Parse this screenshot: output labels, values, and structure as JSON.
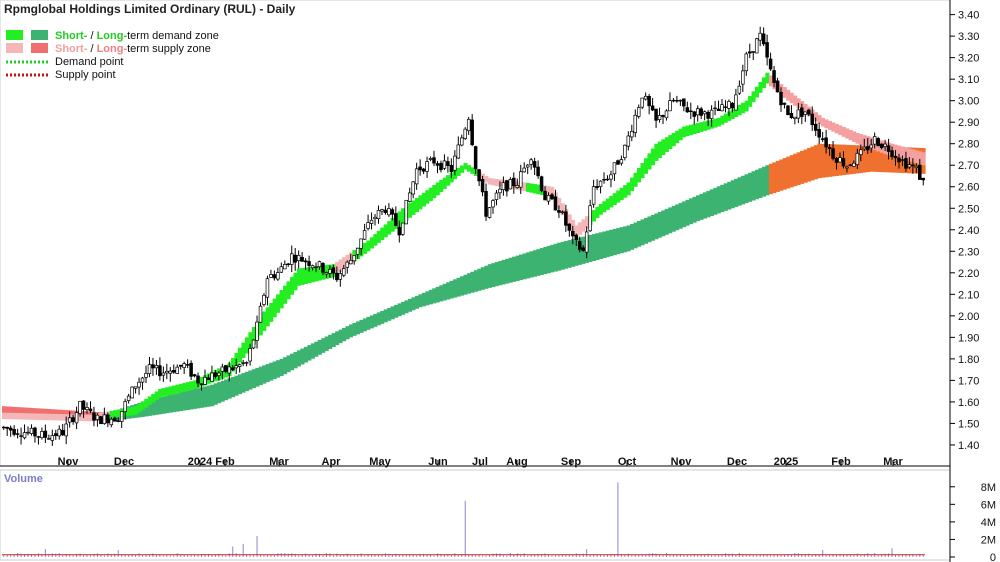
{
  "chart_data": {
    "type": "candlestick",
    "title": "Rpmglobal Holdings Limited Ordinary (RUL) - Daily",
    "legend": [
      {
        "text_a": "Short-",
        "text_b": " / ",
        "text_c": "Long-",
        "text_d": "term demand zone",
        "color_short": "#22ee22",
        "color_long": "#3cb371",
        "text_color": "#22cc22"
      },
      {
        "text_a": "Short-",
        "text_b": " / ",
        "text_c": "Long-",
        "text_d": "term supply zone",
        "color_short": "#f4b6b6",
        "color_long": "#f07070",
        "text_color": "#f0a0a0"
      },
      {
        "text": "Demand point",
        "color": "#22cc22",
        "style": "dotted"
      },
      {
        "text": "Supply point",
        "color": "#cc1111",
        "style": "dotted"
      }
    ],
    "price_axis": {
      "ylim": [
        1.33,
        3.44
      ],
      "ticks": [
        "1.40",
        "1.50",
        "1.60",
        "1.70",
        "1.80",
        "1.90",
        "2.00",
        "2.10",
        "2.20",
        "2.30",
        "2.40",
        "2.50",
        "2.60",
        "2.70",
        "2.80",
        "2.90",
        "3.00",
        "3.10",
        "3.20",
        "3.30",
        "3.40"
      ]
    },
    "months": [
      "Nov",
      "Dec",
      "2024",
      "Feb",
      "Mar",
      "Apr",
      "May",
      "Jun",
      "Jul",
      "Aug",
      "Sep",
      "Oct",
      "Nov",
      "Dec",
      "2025",
      "Feb",
      "Mar"
    ],
    "price_keypoints": [
      [
        0,
        1.48
      ],
      [
        12,
        1.44
      ],
      [
        17,
        1.46
      ],
      [
        22,
        1.58
      ],
      [
        27,
        1.52
      ],
      [
        33,
        1.53
      ],
      [
        38,
        1.68
      ],
      [
        42,
        1.75
      ],
      [
        46,
        1.74
      ],
      [
        52,
        1.77
      ],
      [
        56,
        1.7
      ],
      [
        63,
        1.74
      ],
      [
        70,
        1.78
      ],
      [
        73,
        1.95
      ],
      [
        76,
        2.18
      ],
      [
        79,
        2.2
      ],
      [
        83,
        2.28
      ],
      [
        90,
        2.24
      ],
      [
        96,
        2.18
      ],
      [
        100,
        2.26
      ],
      [
        106,
        2.45
      ],
      [
        110,
        2.5
      ],
      [
        114,
        2.4
      ],
      [
        119,
        2.68
      ],
      [
        124,
        2.72
      ],
      [
        129,
        2.68
      ],
      [
        134,
        2.93
      ],
      [
        136,
        2.7
      ],
      [
        139,
        2.48
      ],
      [
        144,
        2.6
      ],
      [
        148,
        2.62
      ],
      [
        152,
        2.75
      ],
      [
        156,
        2.55
      ],
      [
        160,
        2.5
      ],
      [
        164,
        2.35
      ],
      [
        167,
        2.3
      ],
      [
        170,
        2.6
      ],
      [
        175,
        2.66
      ],
      [
        179,
        2.78
      ],
      [
        184,
        3.03
      ],
      [
        188,
        2.9
      ],
      [
        193,
        3.0
      ],
      [
        198,
        2.95
      ],
      [
        204,
        2.94
      ],
      [
        210,
        2.98
      ],
      [
        214,
        3.2
      ],
      [
        218,
        3.3
      ],
      [
        222,
        3.08
      ],
      [
        226,
        2.93
      ],
      [
        231,
        2.95
      ],
      [
        235,
        2.85
      ],
      [
        239,
        2.75
      ],
      [
        243,
        2.7
      ],
      [
        247,
        2.75
      ],
      [
        251,
        2.82
      ],
      [
        255,
        2.78
      ],
      [
        259,
        2.72
      ],
      [
        263,
        2.68
      ],
      [
        265,
        2.62
      ]
    ],
    "long_zone_upper": [
      [
        0,
        1.58
      ],
      [
        30,
        1.55
      ],
      [
        40,
        1.6
      ],
      [
        60,
        1.68
      ],
      [
        80,
        1.8
      ],
      [
        100,
        1.96
      ],
      [
        120,
        2.1
      ],
      [
        140,
        2.24
      ],
      [
        160,
        2.34
      ],
      [
        180,
        2.42
      ],
      [
        200,
        2.56
      ],
      [
        220,
        2.7
      ],
      [
        235,
        2.8
      ],
      [
        250,
        2.79
      ],
      [
        265,
        2.78
      ]
    ],
    "long_zone_lower": [
      [
        0,
        1.53
      ],
      [
        30,
        1.51
      ],
      [
        40,
        1.53
      ],
      [
        60,
        1.58
      ],
      [
        80,
        1.72
      ],
      [
        100,
        1.9
      ],
      [
        120,
        2.04
      ],
      [
        140,
        2.13
      ],
      [
        160,
        2.21
      ],
      [
        180,
        2.3
      ],
      [
        200,
        2.44
      ],
      [
        220,
        2.56
      ],
      [
        235,
        2.64
      ],
      [
        250,
        2.67
      ],
      [
        265,
        2.66
      ]
    ],
    "short_zone_upper": [
      [
        0,
        1.55
      ],
      [
        25,
        1.54
      ],
      [
        38,
        1.58
      ],
      [
        45,
        1.66
      ],
      [
        55,
        1.7
      ],
      [
        65,
        1.78
      ],
      [
        75,
        2.02
      ],
      [
        85,
        2.22
      ],
      [
        95,
        2.24
      ],
      [
        105,
        2.35
      ],
      [
        115,
        2.5
      ],
      [
        125,
        2.62
      ],
      [
        133,
        2.71
      ],
      [
        140,
        2.64
      ],
      [
        150,
        2.62
      ],
      [
        158,
        2.6
      ],
      [
        165,
        2.42
      ],
      [
        172,
        2.52
      ],
      [
        180,
        2.62
      ],
      [
        188,
        2.8
      ],
      [
        196,
        2.88
      ],
      [
        206,
        2.92
      ],
      [
        214,
        3.0
      ],
      [
        220,
        3.13
      ],
      [
        226,
        3.05
      ],
      [
        236,
        2.92
      ],
      [
        246,
        2.85
      ],
      [
        256,
        2.8
      ],
      [
        265,
        2.76
      ]
    ],
    "short_zone_lower": [
      [
        0,
        1.52
      ],
      [
        25,
        1.51
      ],
      [
        38,
        1.54
      ],
      [
        45,
        1.62
      ],
      [
        55,
        1.66
      ],
      [
        65,
        1.72
      ],
      [
        75,
        1.93
      ],
      [
        85,
        2.14
      ],
      [
        95,
        2.18
      ],
      [
        105,
        2.3
      ],
      [
        115,
        2.43
      ],
      [
        125,
        2.56
      ],
      [
        133,
        2.68
      ],
      [
        140,
        2.61
      ],
      [
        150,
        2.58
      ],
      [
        158,
        2.55
      ],
      [
        165,
        2.36
      ],
      [
        172,
        2.47
      ],
      [
        180,
        2.56
      ],
      [
        188,
        2.72
      ],
      [
        196,
        2.83
      ],
      [
        206,
        2.88
      ],
      [
        214,
        2.95
      ],
      [
        220,
        3.08
      ],
      [
        226,
        3.0
      ],
      [
        236,
        2.88
      ],
      [
        246,
        2.8
      ],
      [
        256,
        2.74
      ],
      [
        265,
        2.7
      ]
    ],
    "supply_segments": [
      [
        0,
        30
      ],
      [
        96,
        100
      ],
      [
        137,
        150
      ],
      [
        156,
        168
      ],
      [
        221,
        265
      ]
    ],
    "volume_axis": {
      "label": "Volume",
      "ylim": [
        0,
        9.0
      ],
      "ticks": [
        "0",
        "2M",
        "4M",
        "6M",
        "8M"
      ]
    },
    "volume_spikes": [
      [
        133,
        6.4
      ],
      [
        177,
        8.5
      ],
      [
        73,
        2.4
      ],
      [
        66,
        1.2
      ],
      [
        69,
        1.5
      ],
      [
        236,
        0.8
      ],
      [
        256,
        1.0
      ],
      [
        12,
        0.9
      ],
      [
        33,
        0.8
      ],
      [
        168,
        0.9
      ]
    ],
    "volume_baseline": 0.3
  }
}
